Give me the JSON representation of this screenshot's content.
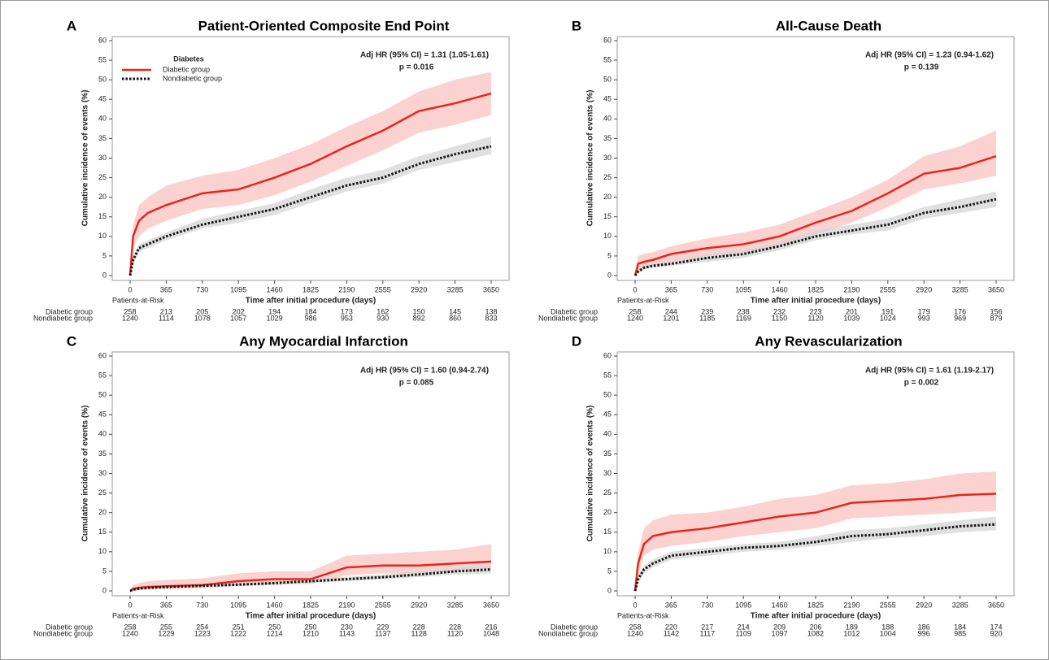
{
  "chart_data": [
    {
      "type": "line",
      "panel": "A",
      "title": "Patient-Oriented Composite End Point",
      "annotations": [
        "Adj HR (95% CI) = 1.31 (1.05-1.61)",
        "p = 0.016"
      ],
      "legend_title": "Diabetes",
      "xlabel": "Time after initial procedure (days)",
      "ylabel": "Cumulative incidence of events (%)",
      "xlim": [
        0,
        3650
      ],
      "xticks": [
        0,
        365,
        730,
        1095,
        1460,
        1825,
        2190,
        2555,
        2920,
        3285,
        3650
      ],
      "ylim": [
        0,
        60
      ],
      "yticks": [
        0,
        5,
        10,
        15,
        20,
        25,
        30,
        35,
        40,
        45,
        50,
        55,
        60
      ],
      "risk_table_title": "Patients-at-Risk",
      "x": [
        0,
        30,
        90,
        180,
        365,
        730,
        1095,
        1460,
        1825,
        2190,
        2555,
        2920,
        3285,
        3650
      ],
      "series": [
        {
          "name": "Diabetic group",
          "color": "#e8251c",
          "band_color": "#fac3bf",
          "values": [
            0,
            10,
            14,
            16,
            18,
            21,
            22,
            25,
            28.5,
            33,
            37,
            42,
            44,
            46.5
          ],
          "lower": [
            0,
            7,
            10,
            12,
            14,
            17,
            18,
            20.5,
            24,
            28,
            32,
            36.5,
            38.5,
            41
          ],
          "upper": [
            0,
            13,
            18,
            20,
            23,
            25.5,
            27,
            30,
            33.5,
            38,
            42,
            47,
            50,
            52
          ],
          "at_risk": [
            258,
            213,
            205,
            202,
            194,
            184,
            173,
            162,
            150,
            145,
            138
          ]
        },
        {
          "name": "Nondiabetic group",
          "color": "#111111",
          "band_color": "#d6d6d6",
          "values": [
            0,
            4,
            7,
            8,
            10,
            13,
            15,
            17,
            20,
            23,
            25,
            28.5,
            31,
            33
          ],
          "lower": [
            0,
            3,
            6,
            7,
            9,
            12,
            13.5,
            15.5,
            18.5,
            21.5,
            23.5,
            27,
            29,
            31
          ],
          "upper": [
            0,
            5,
            8,
            9,
            11,
            14.5,
            16.5,
            18.5,
            22,
            25,
            27,
            30.5,
            33,
            35.5
          ],
          "at_risk": [
            1240,
            1114,
            1078,
            1057,
            1029,
            986,
            953,
            930,
            892,
            860,
            833
          ]
        }
      ]
    },
    {
      "type": "line",
      "panel": "B",
      "title": "All-Cause Death",
      "annotations": [
        "Adj HR (95% CI) = 1.23 (0.94-1.62)",
        "p = 0.139"
      ],
      "xlabel": "Time after initial procedure (days)",
      "ylabel": "Cumulative incidence of events (%)",
      "xlim": [
        0,
        3650
      ],
      "xticks": [
        0,
        365,
        730,
        1095,
        1460,
        1825,
        2190,
        2555,
        2920,
        3285,
        3650
      ],
      "ylim": [
        0,
        60
      ],
      "yticks": [
        0,
        5,
        10,
        15,
        20,
        25,
        30,
        35,
        40,
        45,
        50,
        55,
        60
      ],
      "risk_table_title": "Patients-at-Risk",
      "x": [
        0,
        30,
        90,
        180,
        365,
        730,
        1095,
        1460,
        1825,
        2190,
        2555,
        2920,
        3285,
        3650
      ],
      "series": [
        {
          "name": "Diabetic group",
          "color": "#e8251c",
          "band_color": "#fac3bf",
          "values": [
            0,
            3,
            3.5,
            4,
            5.5,
            7,
            8,
            10,
            13.5,
            16.5,
            21,
            26,
            27.5,
            30.5
          ],
          "lower": [
            0,
            1.5,
            2,
            2.5,
            3.5,
            5,
            6,
            7.5,
            10.5,
            13.5,
            17.5,
            22,
            23.5,
            25.5
          ],
          "upper": [
            0,
            5,
            5.5,
            6,
            7.5,
            9.5,
            11,
            13,
            16.5,
            20,
            24.5,
            30.5,
            33,
            37
          ],
          "at_risk": [
            258,
            244,
            239,
            238,
            232,
            223,
            201,
            191,
            179,
            176,
            156
          ]
        },
        {
          "name": "Nondiabetic group",
          "color": "#111111",
          "band_color": "#d6d6d6",
          "values": [
            0,
            1,
            2,
            2.5,
            3,
            4.5,
            5.5,
            7.5,
            10,
            11.5,
            13,
            16,
            17.5,
            19.5
          ],
          "lower": [
            0,
            0.5,
            1.5,
            2,
            2.5,
            3.5,
            4.5,
            6.5,
            9,
            10.5,
            11.5,
            14.5,
            16,
            17.5
          ],
          "upper": [
            0,
            1.5,
            2.5,
            3,
            3.5,
            5.5,
            6.5,
            8.5,
            11.5,
            13,
            14.5,
            17.5,
            19.5,
            21.5
          ],
          "at_risk": [
            1240,
            1201,
            1185,
            1169,
            1150,
            1120,
            1039,
            1024,
            993,
            969,
            879
          ]
        }
      ]
    },
    {
      "type": "line",
      "panel": "C",
      "title": "Any Myocardial Infarction",
      "annotations": [
        "Adj HR (95% CI) = 1.60 (0.94-2.74)",
        "p = 0.085"
      ],
      "xlabel": "Time after initial procedure (days)",
      "ylabel": "Cumulative incidence of events (%)",
      "xlim": [
        0,
        3650
      ],
      "xticks": [
        0,
        365,
        730,
        1095,
        1460,
        1825,
        2190,
        2555,
        2920,
        3285,
        3650
      ],
      "ylim": [
        0,
        60
      ],
      "yticks": [
        0,
        5,
        10,
        15,
        20,
        25,
        30,
        35,
        40,
        45,
        50,
        55,
        60
      ],
      "risk_table_title": "Patients-at-Risk",
      "x": [
        0,
        30,
        90,
        180,
        365,
        730,
        1095,
        1460,
        1825,
        2190,
        2555,
        2920,
        3285,
        3650
      ],
      "series": [
        {
          "name": "Diabetic group",
          "color": "#e8251c",
          "band_color": "#fac3bf",
          "values": [
            0,
            0.5,
            0.8,
            1,
            1.2,
            1.5,
            2.5,
            3,
            3,
            6,
            6.5,
            6.5,
            7,
            7.5
          ],
          "lower": [
            0,
            0.1,
            0.2,
            0.3,
            0.5,
            0.7,
            1.3,
            1.7,
            1.7,
            4,
            4.5,
            4.5,
            5,
            5.2
          ],
          "upper": [
            0,
            1.5,
            2,
            2.5,
            2.8,
            3.2,
            4.5,
            5,
            5,
            9,
            9.5,
            10,
            10.5,
            12
          ],
          "at_risk": [
            258,
            255,
            254,
            251,
            250,
            250,
            230,
            229,
            228,
            228,
            216
          ]
        },
        {
          "name": "Nondiabetic group",
          "color": "#111111",
          "band_color": "#d6d6d6",
          "values": [
            0,
            0.3,
            0.6,
            0.8,
            1,
            1.3,
            1.6,
            2,
            2.5,
            3,
            3.5,
            4.2,
            5,
            5.5
          ],
          "lower": [
            0,
            0.1,
            0.3,
            0.5,
            0.7,
            1,
            1.2,
            1.5,
            2,
            2.5,
            3,
            3.5,
            4.2,
            4.5
          ],
          "upper": [
            0,
            0.6,
            1,
            1.2,
            1.4,
            1.7,
            2.1,
            2.6,
            3.1,
            3.6,
            4.2,
            5,
            5.8,
            6.5
          ],
          "at_risk": [
            1240,
            1229,
            1223,
            1222,
            1214,
            1210,
            1143,
            1137,
            1128,
            1120,
            1048
          ]
        }
      ]
    },
    {
      "type": "line",
      "panel": "D",
      "title": "Any Revascularization",
      "annotations": [
        "Adj HR (95% CI) = 1.61 (1.19-2.17)",
        "p = 0.002"
      ],
      "xlabel": "Time after initial procedure (days)",
      "ylabel": "Cumulative incidence of events (%)",
      "xlim": [
        0,
        3650
      ],
      "xticks": [
        0,
        365,
        730,
        1095,
        1460,
        1825,
        2190,
        2555,
        2920,
        3285,
        3650
      ],
      "ylim": [
        0,
        60
      ],
      "yticks": [
        0,
        5,
        10,
        15,
        20,
        25,
        30,
        35,
        40,
        45,
        50,
        55,
        60
      ],
      "risk_table_title": "Patients-at-Risk",
      "x": [
        0,
        30,
        90,
        180,
        365,
        730,
        1095,
        1460,
        1825,
        2190,
        2555,
        2920,
        3285,
        3650
      ],
      "series": [
        {
          "name": "Diabetic group",
          "color": "#e8251c",
          "band_color": "#fac3bf",
          "values": [
            0,
            7,
            12,
            14,
            15,
            16,
            17.5,
            19,
            20,
            22.5,
            23,
            23.5,
            24.5,
            24.8
          ],
          "lower": [
            0,
            4,
            9,
            10.5,
            11.5,
            12.5,
            14,
            15,
            16,
            18.5,
            19,
            19.5,
            20,
            20.5
          ],
          "upper": [
            0,
            10,
            16,
            18,
            19.5,
            20,
            21.5,
            23.5,
            24.5,
            27,
            27.5,
            28.5,
            30,
            30.5
          ],
          "at_risk": [
            258,
            220,
            217,
            214,
            209,
            206,
            189,
            188,
            186,
            184,
            174
          ]
        },
        {
          "name": "Nondiabetic group",
          "color": "#111111",
          "band_color": "#d6d6d6",
          "values": [
            0,
            3,
            5.5,
            7,
            9,
            10,
            11,
            11.5,
            12.5,
            14,
            14.5,
            15.5,
            16.5,
            17
          ],
          "lower": [
            0,
            2,
            4.5,
            6,
            8,
            9,
            10,
            10.5,
            11.5,
            12.5,
            13.5,
            14,
            15,
            15.5
          ],
          "upper": [
            0,
            4,
            6.5,
            8,
            10,
            11,
            12,
            12.5,
            14,
            15.5,
            16,
            17,
            18,
            19
          ],
          "at_risk": [
            1240,
            1142,
            1117,
            1109,
            1097,
            1082,
            1012,
            1004,
            996,
            985,
            920
          ]
        }
      ]
    }
  ]
}
